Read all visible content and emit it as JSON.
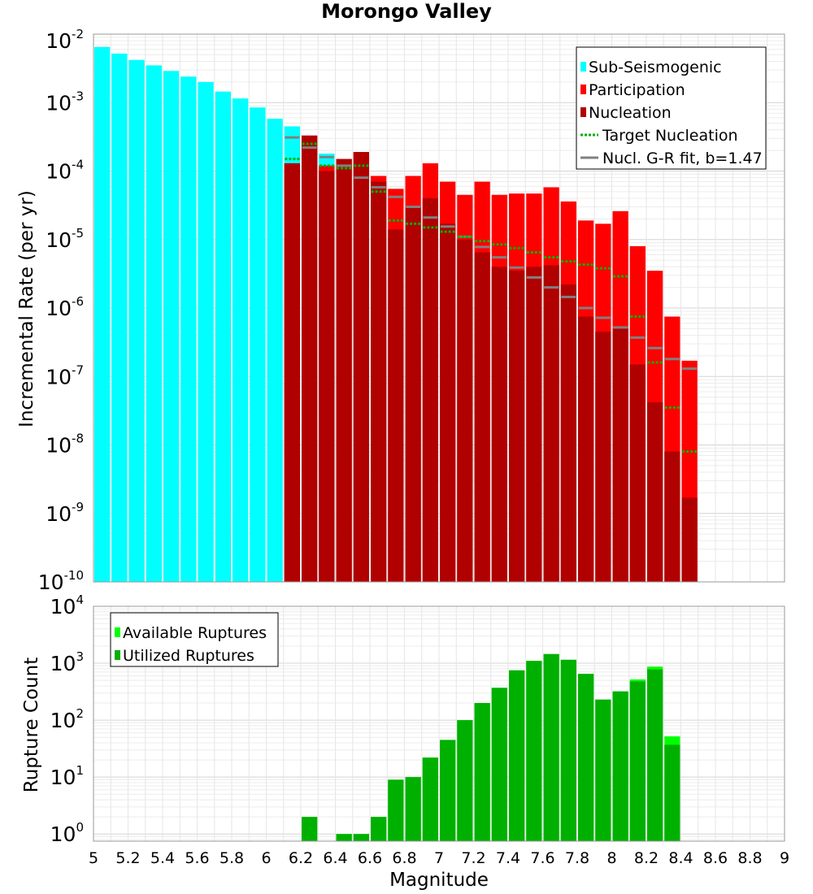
{
  "chart_data": [
    {
      "type": "bar",
      "title": "Morongo Valley",
      "xlabel": "",
      "ylabel": "Incremental Rate (per yr)",
      "xlim": [
        5,
        9
      ],
      "ylim": [
        1e-10,
        0.01
      ],
      "yscale": "log",
      "grid": true,
      "legend_position": "top-right",
      "y_ticks": [
        {
          "base": "10",
          "exp": "-2"
        },
        {
          "base": "10",
          "exp": "-3"
        },
        {
          "base": "10",
          "exp": "-4"
        },
        {
          "base": "10",
          "exp": "-5"
        },
        {
          "base": "10",
          "exp": "-6"
        },
        {
          "base": "10",
          "exp": "-7"
        },
        {
          "base": "10",
          "exp": "-8"
        },
        {
          "base": "10",
          "exp": "-9"
        },
        {
          "base": "10",
          "exp": "-10"
        }
      ],
      "series": [
        {
          "name": "Sub-Seismogenic",
          "color": "#00ffff",
          "x": [
            5.05,
            5.15,
            5.25,
            5.35,
            5.45,
            5.55,
            5.65,
            5.75,
            5.85,
            5.95,
            6.05,
            6.15,
            6.25,
            6.35
          ],
          "values": [
            0.0065,
            0.0052,
            0.0042,
            0.0035,
            0.0029,
            0.0024,
            0.002,
            0.00145,
            0.00115,
            0.00085,
            0.00058,
            0.00045,
            0.00028,
            0.00018
          ]
        },
        {
          "name": "Participation",
          "color": "#ff0000",
          "x": [
            6.15,
            6.25,
            6.35,
            6.45,
            6.55,
            6.65,
            6.75,
            6.85,
            6.95,
            7.05,
            7.15,
            7.25,
            7.35,
            7.45,
            7.55,
            7.65,
            7.75,
            7.85,
            7.95,
            8.05,
            8.15,
            8.25,
            8.35,
            8.45
          ],
          "values": [
            0.00013,
            0.00033,
            0.00012,
            0.00015,
            0.00019,
            8.5e-05,
            5.5e-05,
            8.5e-05,
            0.00013,
            7e-05,
            4.5e-05,
            7e-05,
            4.5e-05,
            4.7e-05,
            4.7e-05,
            5.8e-05,
            3.6e-05,
            1.9e-05,
            1.7e-05,
            2.6e-05,
            8e-06,
            3.5e-06,
            7.5e-07,
            1.7e-07
          ]
        },
        {
          "name": "Nucleation",
          "color": "#b00000",
          "x": [
            6.15,
            6.25,
            6.35,
            6.45,
            6.55,
            6.65,
            6.75,
            6.85,
            6.95,
            7.05,
            7.15,
            7.25,
            7.35,
            7.45,
            7.55,
            7.65,
            7.75,
            7.85,
            7.95,
            8.05,
            8.15,
            8.25,
            8.35,
            8.45
          ],
          "values": [
            0.00013,
            0.00033,
            0.0001,
            0.00015,
            0.00019,
            7e-05,
            1.4e-05,
            3e-05,
            4e-05,
            1.7e-05,
            1e-05,
            6.5e-06,
            4e-06,
            3.5e-06,
            4e-06,
            4.2e-06,
            2.2e-06,
            7.5e-07,
            4.5e-07,
            5e-07,
            1.5e-07,
            4.2e-08,
            8e-09,
            1.7e-09
          ]
        },
        {
          "name": "Target Nucleation",
          "color": "#00b000",
          "style": "dotted",
          "x": [
            6.15,
            6.25,
            6.35,
            6.45,
            6.55,
            6.65,
            6.75,
            6.85,
            6.95,
            7.05,
            7.15,
            7.25,
            7.35,
            7.45,
            7.55,
            7.65,
            7.75,
            7.85,
            7.95,
            8.05,
            8.15,
            8.25,
            8.35,
            8.45
          ],
          "values": [
            0.00015,
            0.00025,
            0.00012,
            0.00011,
            0.00012,
            5e-05,
            1.9e-05,
            1.7e-05,
            1.5e-05,
            1.3e-05,
            1.1e-05,
            9.5e-06,
            8.5e-06,
            7.5e-06,
            6.5e-06,
            5.5e-06,
            4.8e-06,
            4.3e-06,
            3.8e-06,
            2.9e-06,
            7.5e-07,
            1.6e-07,
            3.5e-08,
            8e-09
          ]
        },
        {
          "name": "Nucl. G-R fit, b=1.47",
          "color": "#808080",
          "x": [
            6.15,
            6.25,
            6.35,
            6.45,
            6.55,
            6.65,
            6.75,
            6.85,
            6.95,
            7.05,
            7.15,
            7.25,
            7.35,
            7.45,
            7.55,
            7.65,
            7.75,
            7.85,
            7.95,
            8.05,
            8.15,
            8.25,
            8.35,
            8.45
          ],
          "values": [
            0.00031,
            0.00022,
            0.00016,
            0.00012,
            8e-05,
            5.8e-05,
            4.2e-05,
            3e-05,
            2.1e-05,
            1.55e-05,
            1.1e-05,
            7.8e-06,
            5.5e-06,
            3.9e-06,
            2.8e-06,
            2e-06,
            1.45e-06,
            1e-06,
            7.2e-07,
            5.2e-07,
            3.7e-07,
            2.6e-07,
            1.8e-07,
            1.3e-07
          ]
        }
      ]
    },
    {
      "type": "bar",
      "title": "",
      "xlabel": "Magnitude",
      "ylabel": "Rupture Count",
      "xlim": [
        5,
        9
      ],
      "ylim": [
        0.75,
        10000
      ],
      "yscale": "log",
      "grid": true,
      "legend_position": "top-left",
      "x_ticks": [
        "5",
        "5.2",
        "5.4",
        "5.6",
        "5.8",
        "6",
        "6.2",
        "6.4",
        "6.6",
        "6.8",
        "7",
        "7.2",
        "7.4",
        "7.6",
        "7.8",
        "8",
        "8.2",
        "8.4",
        "8.6",
        "8.8",
        "9"
      ],
      "y_ticks": [
        {
          "base": "10",
          "exp": "4"
        },
        {
          "base": "10",
          "exp": "3"
        },
        {
          "base": "10",
          "exp": "2"
        },
        {
          "base": "10",
          "exp": "1"
        },
        {
          "base": "10",
          "exp": "0"
        }
      ],
      "series": [
        {
          "name": "Available Ruptures",
          "color": "#00ff00",
          "x": [
            6.25,
            6.45,
            6.55,
            6.65,
            6.75,
            6.85,
            6.95,
            7.05,
            7.15,
            7.25,
            7.35,
            7.45,
            7.55,
            7.65,
            7.75,
            7.85,
            7.95,
            8.05,
            8.15,
            8.25,
            8.35
          ],
          "values": [
            2,
            1,
            1,
            2,
            9,
            10,
            22,
            45,
            100,
            200,
            370,
            750,
            1100,
            1450,
            1150,
            650,
            230,
            320,
            520,
            870,
            52
          ]
        },
        {
          "name": "Utilized Ruptures",
          "color": "#00b000",
          "x": [
            6.25,
            6.45,
            6.55,
            6.65,
            6.75,
            6.85,
            6.95,
            7.05,
            7.15,
            7.25,
            7.35,
            7.45,
            7.55,
            7.65,
            7.75,
            7.85,
            7.95,
            8.05,
            8.15,
            8.25,
            8.35
          ],
          "values": [
            2,
            1,
            1,
            2,
            9,
            10,
            22,
            45,
            100,
            200,
            370,
            750,
            1100,
            1450,
            1150,
            650,
            230,
            320,
            480,
            780,
            37
          ]
        }
      ]
    }
  ]
}
